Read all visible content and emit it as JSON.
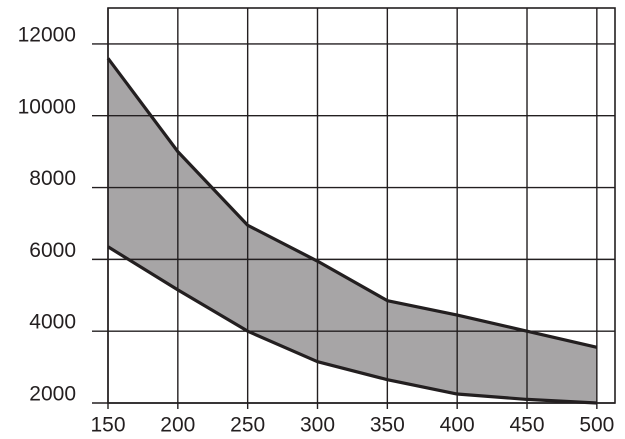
{
  "chart_data": {
    "type": "band",
    "x": [
      150,
      200,
      250,
      300,
      350,
      400,
      450,
      500
    ],
    "series": [
      {
        "color": "#231f20",
        "values": [
          11600,
          9000,
          6950,
          5950,
          4850,
          4450,
          4000,
          3550
        ]
      },
      {
        "color": "#231f20",
        "values": [
          6350,
          5150,
          4000,
          3150,
          2650,
          2250,
          2100,
          2000
        ]
      }
    ],
    "fill": "#a7a5a6",
    "xlim": [
      150,
      513
    ],
    "xticks": [
      150,
      200,
      250,
      300,
      350,
      400,
      450,
      500
    ],
    "ylim": [
      2000,
      13000
    ],
    "yticks": [
      2000,
      4000,
      6000,
      8000,
      10000,
      12000
    ],
    "grid": true
  }
}
